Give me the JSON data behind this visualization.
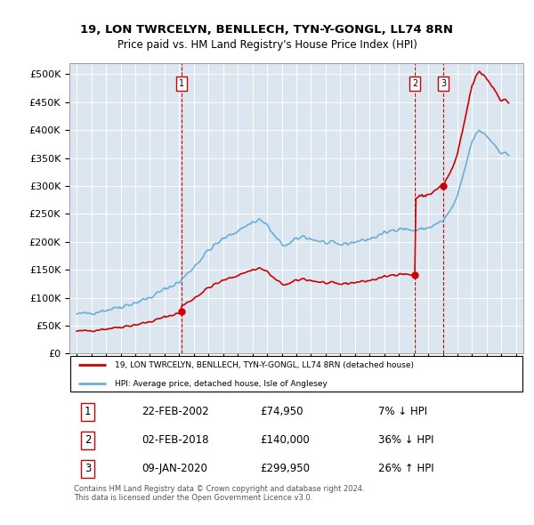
{
  "title": "19, LON TWRCELYN, BENLLECH, TYN-Y-GONGL, LL74 8RN",
  "subtitle": "Price paid vs. HM Land Registry's House Price Index (HPI)",
  "background_color": "#dce6f0",
  "hpi_color": "#6baed6",
  "price_color": "#cc0000",
  "vline_color": "#cc0000",
  "ylim": [
    0,
    520000
  ],
  "yticks": [
    0,
    50000,
    100000,
    150000,
    200000,
    250000,
    300000,
    350000,
    400000,
    450000,
    500000
  ],
  "ytick_labels": [
    "£0",
    "£50K",
    "£100K",
    "£150K",
    "£200K",
    "£250K",
    "£300K",
    "£350K",
    "£400K",
    "£450K",
    "£500K"
  ],
  "xlim_start": 1994.5,
  "xlim_end": 2025.5,
  "sale_dates": [
    2002.14,
    2018.09,
    2020.03
  ],
  "sale_prices": [
    74950,
    140000,
    299950
  ],
  "sale_labels": [
    "1",
    "2",
    "3"
  ],
  "legend_line1": "19, LON TWRCELYN, BENLLECH, TYN-Y-GONGL, LL74 8RN (detached house)",
  "legend_line2": "HPI: Average price, detached house, Isle of Anglesey",
  "table_data": [
    [
      "1",
      "22-FEB-2002",
      "£74,950",
      "7% ↓ HPI"
    ],
    [
      "2",
      "02-FEB-2018",
      "£140,000",
      "36% ↓ HPI"
    ],
    [
      "3",
      "09-JAN-2020",
      "£299,950",
      "26% ↑ HPI"
    ]
  ],
  "footer_text": "Contains HM Land Registry data © Crown copyright and database right 2024.\nThis data is licensed under the Open Government Licence v3.0."
}
